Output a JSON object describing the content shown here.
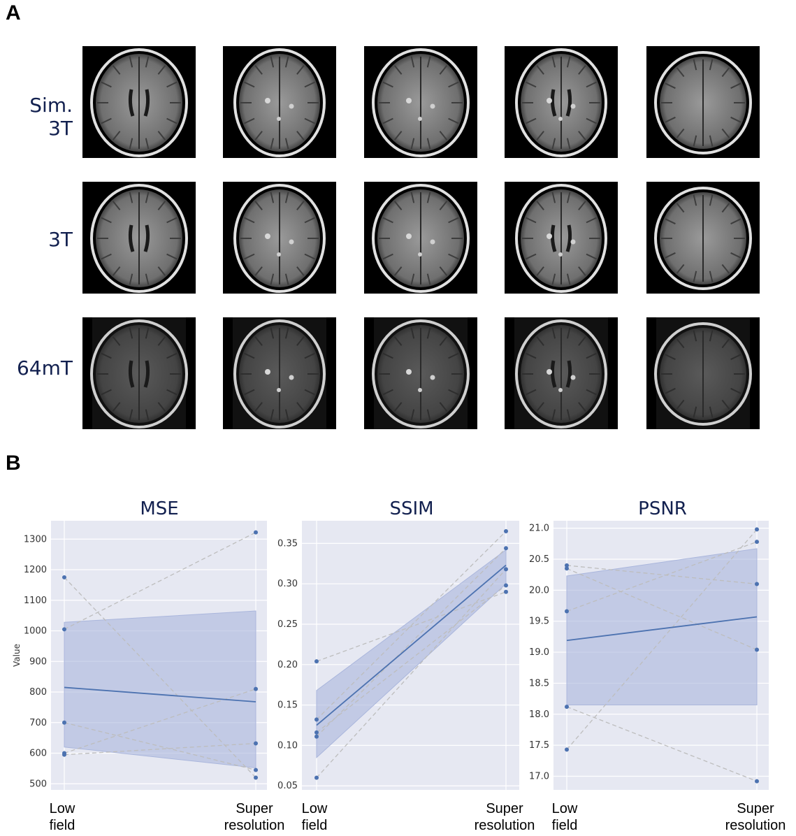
{
  "panel_a": {
    "letter": "A",
    "rows": [
      {
        "label": "Sim. 3T",
        "images": 5
      },
      {
        "label": "3T",
        "images": 5
      },
      {
        "label": "64mT",
        "images": 5
      }
    ]
  },
  "panel_b": {
    "letter": "B"
  },
  "chart_data": [
    {
      "type": "line",
      "title": "MSE",
      "ylabel": "Value",
      "categories": [
        [
          "Low",
          "field"
        ],
        [
          "Super",
          "resolution"
        ]
      ],
      "ylim": [
        480,
        1360
      ],
      "yticks": [
        500,
        600,
        700,
        800,
        900,
        1000,
        1100,
        1200,
        1300
      ],
      "tick_labels": [
        "500",
        "600",
        "700",
        "800",
        "900",
        "1000",
        "1100",
        "1200",
        "1300"
      ],
      "subjects": [
        [
          1175,
          520
        ],
        [
          1005,
          1322
        ],
        [
          700,
          545
        ],
        [
          600,
          810
        ],
        [
          595,
          632
        ]
      ],
      "mean": [
        815,
        768
      ],
      "ci": [
        [
          620,
          1028
        ],
        [
          552,
          1065
        ]
      ],
      "colors": {
        "mean": "#4c72b0",
        "band": "#aab6dc",
        "subject": "#bdbdbd",
        "bg": "#e6e8f2"
      }
    },
    {
      "type": "line",
      "title": "SSIM",
      "ylabel": "",
      "categories": [
        [
          "Low",
          "field"
        ],
        [
          "Super",
          "resolution"
        ]
      ],
      "ylim": [
        0.045,
        0.378
      ],
      "yticks": [
        0.05,
        0.1,
        0.15,
        0.2,
        0.25,
        0.3,
        0.35
      ],
      "tick_labels": [
        "0.05",
        "0.10",
        "0.15",
        "0.20",
        "0.25",
        "0.30",
        "0.35"
      ],
      "subjects": [
        [
          0.204,
          0.29
        ],
        [
          0.132,
          0.365
        ],
        [
          0.116,
          0.298
        ],
        [
          0.111,
          0.344
        ],
        [
          0.06,
          0.318
        ]
      ],
      "mean": [
        0.125,
        0.323
      ],
      "ci": [
        [
          0.085,
          0.168
        ],
        [
          0.3,
          0.342
        ]
      ],
      "colors": {
        "mean": "#4c72b0",
        "band": "#aab6dc",
        "subject": "#bdbdbd",
        "bg": "#e6e8f2"
      }
    },
    {
      "type": "line",
      "title": "PSNR",
      "ylabel": "",
      "categories": [
        [
          "Low",
          "field"
        ],
        [
          "Super",
          "resolution"
        ]
      ],
      "ylim": [
        16.78,
        21.12
      ],
      "yticks": [
        17.0,
        17.5,
        18.0,
        18.5,
        19.0,
        19.5,
        20.0,
        20.5,
        21.0
      ],
      "tick_labels": [
        "17.0",
        "17.5",
        "18.0",
        "18.5",
        "19.0",
        "19.5",
        "20.0",
        "20.5",
        "21.0"
      ],
      "subjects": [
        [
          20.4,
          20.1
        ],
        [
          20.35,
          19.04
        ],
        [
          19.66,
          20.78
        ],
        [
          18.12,
          16.92
        ],
        [
          17.43,
          20.98
        ]
      ],
      "mean": [
        19.19,
        19.57
      ],
      "ci": [
        [
          18.15,
          20.23
        ],
        [
          18.15,
          20.67
        ]
      ],
      "colors": {
        "mean": "#4c72b0",
        "band": "#aab6dc",
        "subject": "#bdbdbd",
        "bg": "#e6e8f2"
      }
    }
  ]
}
